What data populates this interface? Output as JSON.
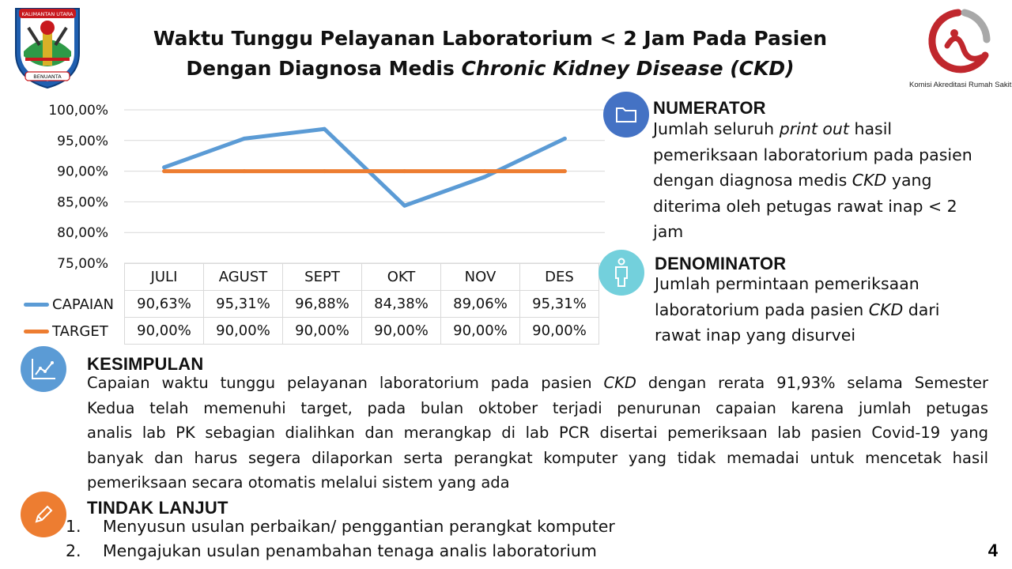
{
  "title": {
    "line1": "Waktu Tunggu Pelayanan Laboratorium < 2 Jam Pada Pasien",
    "line2_plain": "Dengan Diagnosa Medis ",
    "line2_italic": "Chronic Kidney Disease (CKD)"
  },
  "logos": {
    "left_banner_top": "KALIMANTAN UTARA",
    "left_banner_bottom": "BENUANTA",
    "right_caption": "Komisi Akreditasi Rumah Sakit"
  },
  "chart_data": {
    "type": "line",
    "categories": [
      "JULI",
      "AGUST",
      "SEPT",
      "OKT",
      "NOV",
      "DES"
    ],
    "series": [
      {
        "name": "CAPAIAN",
        "color": "#5b9bd5",
        "values": [
          90.63,
          95.31,
          96.88,
          84.38,
          89.06,
          95.31
        ],
        "labels": [
          "90,63%",
          "95,31%",
          "96,88%",
          "84,38%",
          "89,06%",
          "95,31%"
        ]
      },
      {
        "name": "TARGET",
        "color": "#ed7d31",
        "values": [
          90.0,
          90.0,
          90.0,
          90.0,
          90.0,
          90.0
        ],
        "labels": [
          "90,00%",
          "90,00%",
          "90,00%",
          "90,00%",
          "90,00%",
          "90,00%"
        ]
      }
    ],
    "ylim": [
      75,
      100
    ],
    "yticks": [
      100,
      95,
      90,
      85,
      80,
      75
    ],
    "ytick_labels": [
      "100,00%",
      "95,00%",
      "90,00%",
      "85,00%",
      "80,00%",
      "75,00%"
    ],
    "grid": true,
    "legend": "data-table"
  },
  "numerator": {
    "heading": "NUMERATOR",
    "icon": "folder-icon",
    "color": "#4472c4",
    "lines": [
      {
        "pre": "Jumlah seluruh ",
        "em": "print out",
        "post": " hasil"
      },
      {
        "pre": "pemeriksaan laboratorium pada pasien",
        "em": "",
        "post": ""
      },
      {
        "pre": "dengan diagnosa medis ",
        "em": "CKD",
        "post": " yang"
      },
      {
        "pre": "diterima oleh petugas rawat inap < 2",
        "em": "",
        "post": ""
      },
      {
        "pre": "jam",
        "em": "",
        "post": ""
      }
    ]
  },
  "denominator": {
    "heading": "DENOMINATOR",
    "icon": "person-icon",
    "color": "#73d0dc",
    "lines": [
      {
        "pre": "Jumlah permintaan pemeriksaan",
        "em": "",
        "post": ""
      },
      {
        "pre": "laboratorium pada pasien ",
        "em": "CKD",
        "post": " dari"
      },
      {
        "pre": "rawat inap yang disurvei",
        "em": "",
        "post": ""
      }
    ]
  },
  "kesimpulan": {
    "heading": "KESIMPULAN",
    "icon": "chart-icon",
    "color": "#5b9bd5",
    "lines": [
      {
        "pre": "Capaian waktu tunggu pelayanan laboratorium pada pasien ",
        "em": "CKD",
        "post": " dengan rerata 91,93% selama Semester"
      },
      {
        "pre": "Kedua  telah memenuhi target, pada bulan oktober terjadi penurunan capaian karena jumlah petugas",
        "em": "",
        "post": ""
      },
      {
        "pre": "analis lab PK sebagian dialihkan dan merangkap di lab PCR disertai pemeriksaan lab pasien Covid-19 yang",
        "em": "",
        "post": ""
      },
      {
        "pre": "banyak dan harus segera dilaporkan serta perangkat komputer yang tidak memadai untuk mencetak hasil",
        "em": "",
        "post": ""
      },
      {
        "pre": "pemeriksaan secara otomatis melalui sistem yang ada",
        "em": "",
        "post": ""
      }
    ]
  },
  "tindak_lanjut": {
    "heading": "TINDAK LANJUT",
    "icon": "pencil-icon",
    "color": "#ed7d31",
    "items": [
      {
        "num": "1.",
        "text": "Menyusun usulan perbaikan/ penggantian perangkat komputer"
      },
      {
        "num": "2.",
        "text": "Mengajukan usulan penambahan tenaga analis laboratorium"
      }
    ]
  },
  "page_number": "4"
}
